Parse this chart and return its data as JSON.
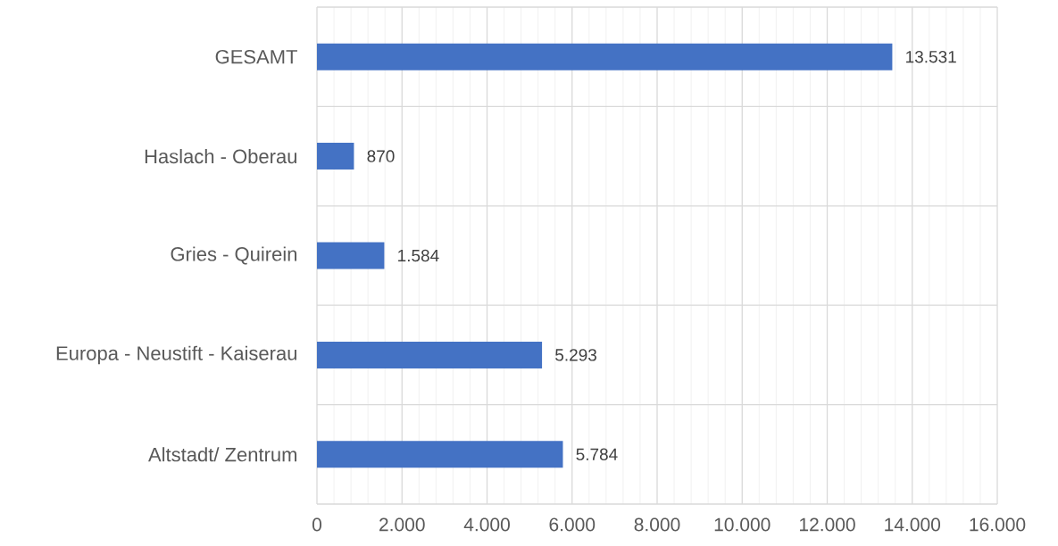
{
  "chart_data": {
    "type": "bar",
    "orientation": "horizontal",
    "categories": [
      "GESAMT",
      "Haslach - Oberau",
      "Gries - Quirein",
      "Europa - Neustift - Kaiserau",
      "Altstadt/ Zentrum"
    ],
    "values": [
      13531,
      870,
      1584,
      5293,
      5784
    ],
    "color": "#4472c4",
    "value_labels": [
      "13.531",
      "870",
      "1.584",
      "5.293",
      "5.784"
    ],
    "xlim": [
      0,
      16000
    ],
    "xticks": [
      0,
      {
        "value": 400,
        "label": null
      },
      {
        "value": 800,
        "label": null
      },
      {
        "value": 1200,
        "label": null
      },
      {
        "value": 1600,
        "label": null
      },
      {
        "value": 2000,
        "label": "2.000"
      },
      {
        "value": 2400,
        "label": null
      },
      {
        "value": 2800,
        "label": null
      },
      {
        "value": 3200,
        "label": null
      },
      {
        "value": 3600,
        "label": null
      },
      {
        "value": 4000,
        "label": "4.000"
      },
      {
        "value": 4400,
        "label": null
      },
      {
        "value": 4800,
        "label": null
      },
      {
        "value": 5200,
        "label": null
      },
      {
        "value": 5600,
        "label": null
      },
      {
        "value": 6000,
        "label": "6.000"
      },
      {
        "value": 6400,
        "label": null
      },
      {
        "value": 6800,
        "label": null
      },
      {
        "value": 7200,
        "label": null
      },
      {
        "value": 7600,
        "label": null
      },
      {
        "value": 8000,
        "label": "8.000"
      },
      {
        "value": 8400,
        "label": null
      },
      {
        "value": 8800,
        "label": null
      },
      {
        "value": 9200,
        "label": null
      },
      {
        "value": 9600,
        "label": null
      },
      {
        "value": 10000,
        "label": "10.000"
      },
      {
        "value": 10400,
        "label": null
      },
      {
        "value": 10800,
        "label": null
      },
      {
        "value": 11200,
        "label": null
      },
      {
        "value": 11600,
        "label": null
      },
      {
        "value": 12000,
        "label": "12.000"
      },
      {
        "value": 12400,
        "label": null
      },
      {
        "value": 12800,
        "label": null
      },
      {
        "value": 13200,
        "label": null
      },
      {
        "value": 13600,
        "label": null
      },
      {
        "value": 14000,
        "label": "14.000"
      },
      {
        "value": 14400,
        "label": null
      },
      {
        "value": 14800,
        "label": null
      },
      {
        "value": 15200,
        "label": null
      },
      {
        "value": 15600,
        "label": null
      },
      {
        "value": 16000,
        "label": "16.000"
      }
    ],
    "grid": true
  }
}
